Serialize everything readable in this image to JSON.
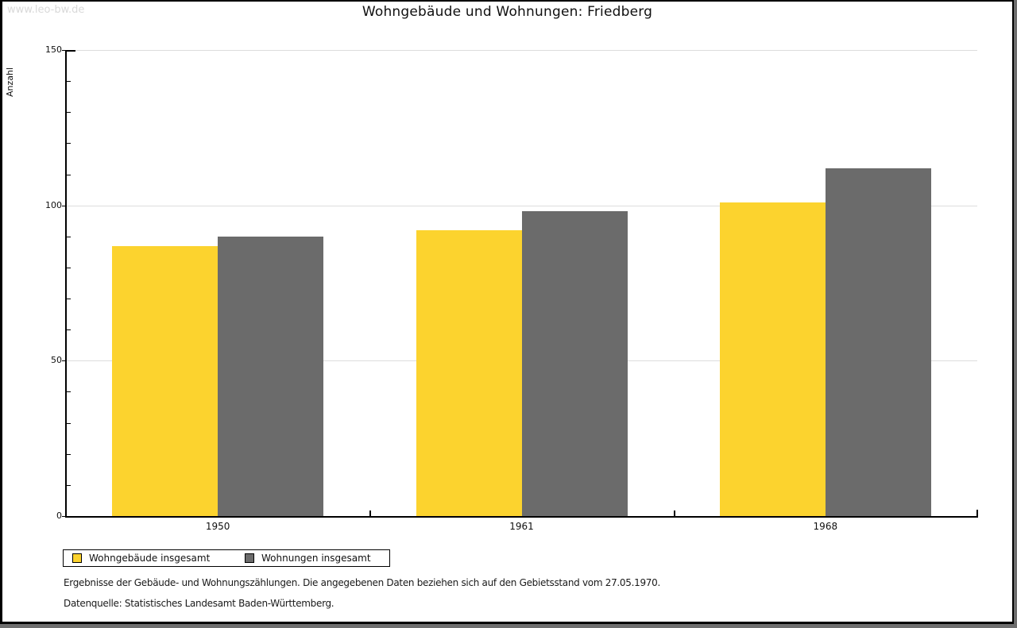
{
  "watermark": "www.leo-bw.de",
  "title": "Wohngebäude und Wohnungen: Friedberg",
  "y_axis_label": "Anzahl",
  "legend": {
    "items": [
      {
        "label": "Wohngebäude insgesamt",
        "color": "#FCD32E"
      },
      {
        "label": "Wohnungen insgesamt",
        "color": "#6B6B6B"
      }
    ]
  },
  "footnotes": [
    "Ergebnisse der Gebäude- und Wohnungszählungen. Die angegebenen Daten beziehen sich auf den Gebietsstand vom 27.05.1970.",
    "Datenquelle: Statistisches Landesamt Baden-Württemberg."
  ],
  "colors": {
    "bar_yellow": "#FCD32E",
    "bar_gray": "#6B6B6B",
    "gridline": "#DDDDDD",
    "axis": "#000000",
    "watermark": "#D9D9D9"
  },
  "chart_data": {
    "type": "bar",
    "title": "Wohngebäude und Wohnungen: Friedberg",
    "categories": [
      "1950",
      "1961",
      "1968"
    ],
    "series": [
      {
        "name": "Wohngebäude insgesamt",
        "color": "#FCD32E",
        "values": [
          87,
          92,
          101
        ]
      },
      {
        "name": "Wohnungen insgesamt",
        "color": "#6B6B6B",
        "values": [
          90,
          98,
          112
        ]
      }
    ],
    "xlabel": "",
    "ylabel": "Anzahl",
    "ylim": [
      0,
      150
    ],
    "y_major_ticks": [
      0,
      50,
      100,
      150
    ],
    "y_minor_step": 10,
    "grid": "horizontal-major",
    "legend_position": "bottom-left"
  }
}
